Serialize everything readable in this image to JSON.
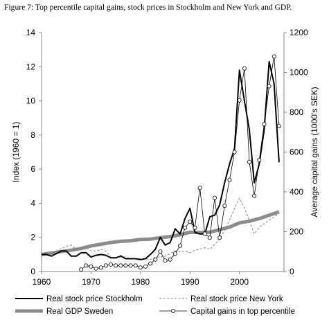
{
  "caption": "Figure 7: Top percentile capital gains, stock prices in Stockholm and New York and GDP.",
  "chart_data": {
    "type": "line",
    "title": "Figure 7: Top percentile capital gains, stock prices in Stockholm and New York and GDP.",
    "ylabel_left": "Index (1960 = 1)",
    "ylabel_right": "Average capital gains (1000's SEK)",
    "xlim": [
      1960,
      2009
    ],
    "ylim_left": [
      0,
      14
    ],
    "ylim_right": [
      0,
      1200
    ],
    "x_ticks": [
      1960,
      1970,
      1980,
      1990,
      2000
    ],
    "y_ticks_left": [
      0,
      2,
      4,
      6,
      8,
      10,
      12,
      14
    ],
    "y_ticks_right": [
      0,
      200,
      400,
      600,
      800,
      1000,
      1200
    ],
    "grid": false,
    "legend_position": "bottom",
    "series": [
      {
        "name": "Real stock price Stockholm",
        "axis": "left",
        "color": "#000000",
        "style": "solid",
        "x": [
          1960,
          1961,
          1962,
          1963,
          1964,
          1965,
          1966,
          1967,
          1968,
          1969,
          1970,
          1971,
          1972,
          1973,
          1974,
          1975,
          1976,
          1977,
          1978,
          1979,
          1980,
          1981,
          1982,
          1983,
          1984,
          1985,
          1986,
          1987,
          1988,
          1989,
          1990,
          1991,
          1992,
          1993,
          1994,
          1995,
          1996,
          1997,
          1998,
          1999,
          2000,
          2001,
          2002,
          2003,
          2004,
          2005,
          2006,
          2007,
          2008
        ],
        "values": [
          1.0,
          1.0,
          0.9,
          1.05,
          1.2,
          1.2,
          0.9,
          0.9,
          1.1,
          1.1,
          0.85,
          0.95,
          1.0,
          0.95,
          0.8,
          0.8,
          0.9,
          0.75,
          0.75,
          0.75,
          0.7,
          0.75,
          1.0,
          1.3,
          2.0,
          1.55,
          1.7,
          2.5,
          2.2,
          3.1,
          3.7,
          2.3,
          2.2,
          2.2,
          3.2,
          3.3,
          3.9,
          5.2,
          6.3,
          7.2,
          11.8,
          10.0,
          8.3,
          5.2,
          6.3,
          8.3,
          12.3,
          11.0,
          6.4
        ]
      },
      {
        "name": "Real stock price New York",
        "axis": "left",
        "color": "#7f7f7f",
        "style": "dashed",
        "x": [
          1960,
          1961,
          1962,
          1963,
          1964,
          1965,
          1966,
          1967,
          1968,
          1969,
          1970,
          1971,
          1972,
          1973,
          1974,
          1975,
          1976,
          1977,
          1978,
          1979,
          1980,
          1981,
          1982,
          1983,
          1984,
          1985,
          1986,
          1987,
          1988,
          1989,
          1990,
          1991,
          1992,
          1993,
          1994,
          1995,
          1996,
          1997,
          1998,
          1999,
          2000,
          2001,
          2002,
          2003,
          2004,
          2005,
          2006,
          2007,
          2008
        ],
        "values": [
          1.0,
          1.1,
          1.05,
          1.2,
          1.35,
          1.45,
          1.55,
          1.3,
          1.3,
          1.4,
          1.2,
          1.2,
          1.3,
          1.2,
          0.85,
          0.8,
          0.95,
          0.85,
          0.75,
          0.75,
          0.75,
          0.75,
          0.7,
          0.85,
          0.85,
          0.9,
          1.05,
          1.2,
          1.15,
          1.2,
          1.1,
          1.25,
          1.3,
          1.4,
          1.3,
          1.6,
          1.9,
          2.4,
          3.0,
          3.7,
          4.3,
          3.7,
          3.0,
          2.2,
          2.6,
          2.8,
          3.0,
          3.2,
          3.4
        ]
      },
      {
        "name": "Real GDP Sweden",
        "axis": "left",
        "color": "#8c8c8c",
        "style": "thick",
        "x": [
          1960,
          1962,
          1964,
          1966,
          1968,
          1970,
          1972,
          1974,
          1976,
          1978,
          1980,
          1982,
          1984,
          1986,
          1988,
          1990,
          1992,
          1994,
          1996,
          1998,
          2000,
          2002,
          2004,
          2006,
          2008
        ],
        "values": [
          1.0,
          1.08,
          1.17,
          1.25,
          1.35,
          1.5,
          1.6,
          1.7,
          1.77,
          1.8,
          1.88,
          1.9,
          1.98,
          2.05,
          2.15,
          2.3,
          2.28,
          2.3,
          2.45,
          2.6,
          2.85,
          2.95,
          3.1,
          3.3,
          3.5
        ]
      },
      {
        "name": "Capital gains in top percentile",
        "axis": "right",
        "color": "#000000",
        "style": "thin-with-circles",
        "x": [
          1968,
          1969,
          1970,
          1971,
          1972,
          1973,
          1974,
          1975,
          1976,
          1977,
          1978,
          1979,
          1980,
          1981,
          1982,
          1983,
          1984,
          1985,
          1986,
          1987,
          1988,
          1989,
          1990,
          1991,
          1992,
          1993,
          1994,
          1995,
          1996,
          1997,
          1998,
          1999,
          2000,
          2001,
          2002,
          2003,
          2004,
          2005,
          2006,
          2007,
          2008
        ],
        "values": [
          10,
          30,
          25,
          15,
          20,
          30,
          35,
          30,
          30,
          30,
          30,
          30,
          20,
          25,
          40,
          60,
          100,
          55,
          60,
          90,
          130,
          220,
          250,
          220,
          420,
          190,
          170,
          370,
          170,
          330,
          460,
          600,
          860,
          1020,
          550,
          380,
          560,
          740,
          930,
          1080,
          730
        ]
      }
    ]
  }
}
